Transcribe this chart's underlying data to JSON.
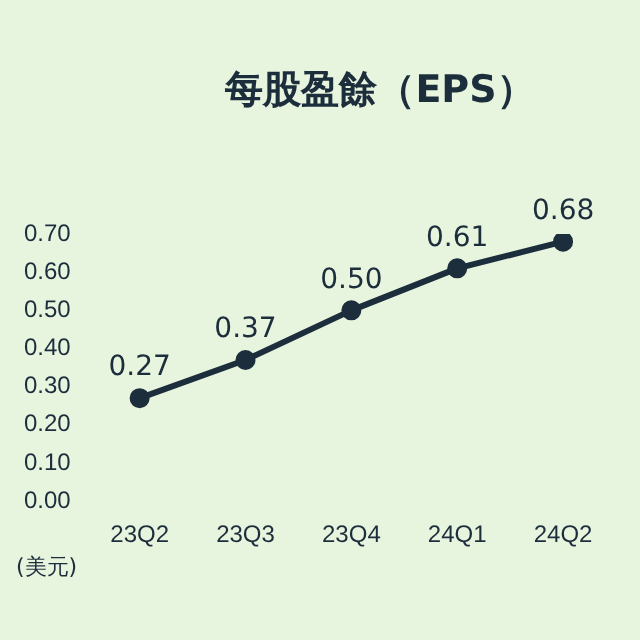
{
  "chart_data": {
    "type": "line",
    "title": "每股盈餘（EPS）",
    "ylabel": "(美元)",
    "categories": [
      "23Q2",
      "23Q3",
      "23Q4",
      "24Q1",
      "24Q2"
    ],
    "series": [
      {
        "color": "#1c2d3c",
        "values": [
          0.27,
          0.37,
          0.5,
          0.61,
          0.68
        ],
        "value_labels": [
          "0.27",
          "0.37",
          "0.50",
          "0.61",
          "0.68"
        ]
      }
    ],
    "ylim": [
      0,
      0.7
    ],
    "yticks": [
      {
        "value": 0,
        "label": "0.00"
      },
      {
        "value": 0.1,
        "label": "0.10"
      },
      {
        "value": 0.2,
        "label": "0.20"
      },
      {
        "value": 0.3,
        "label": "0.30"
      },
      {
        "value": 0.4,
        "label": "0.40"
      },
      {
        "value": 0.5,
        "label": "0.50"
      },
      {
        "value": 0.6,
        "label": "0.60"
      },
      {
        "value": 0.7,
        "label": "0.70"
      }
    ],
    "grid": false,
    "legend": false,
    "marker": "circle",
    "line_style": "solid"
  }
}
